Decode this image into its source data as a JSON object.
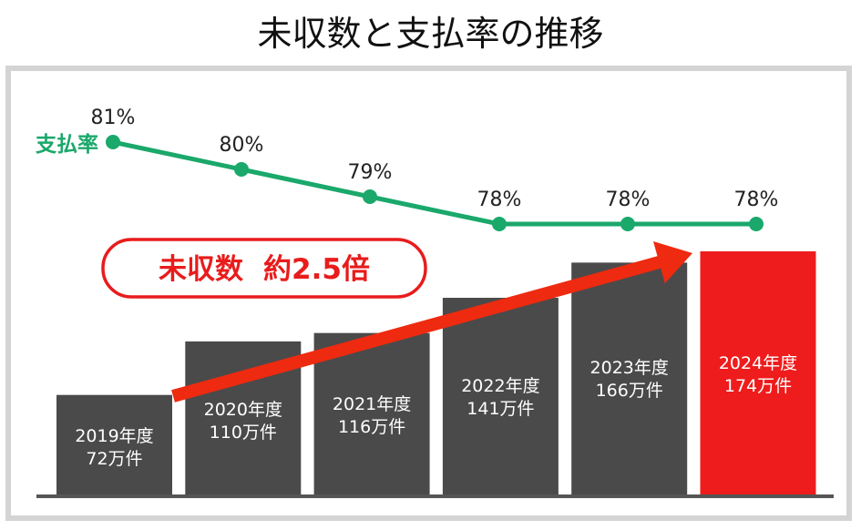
{
  "title": "未収数と支払率の推移",
  "colors": {
    "bar": "#4a4a4a",
    "highlight_bar": "#ee1c1c",
    "line": "#1aa86b",
    "arrow": "#ee2a10",
    "callout": "#e81c1c",
    "frame": "#d4d4d4",
    "axis": "#555555"
  },
  "annotation": {
    "callout_label": "未収数",
    "callout_value": "約2.5倍"
  },
  "chart_data": {
    "type": "bar",
    "title": "未収数と支払率の推移",
    "categories": [
      "2019年度",
      "2020年度",
      "2021年度",
      "2022年度",
      "2023年度",
      "2024年度"
    ],
    "bar_labels": [
      "72万件",
      "110万件",
      "116万件",
      "141万件",
      "166万件",
      "174万件"
    ],
    "series": [
      {
        "type": "bar",
        "values": [
          72,
          110,
          116,
          141,
          166,
          174
        ],
        "unit": "万件"
      },
      {
        "type": "line",
        "name": "支払率",
        "values": [
          81,
          80,
          79,
          78,
          78,
          78
        ],
        "unit": "%",
        "value_labels": [
          "81%",
          "80%",
          "79%",
          "78%",
          "78%",
          "78%"
        ]
      }
    ],
    "highlight_index": 5,
    "legend": "none",
    "grid": false
  }
}
